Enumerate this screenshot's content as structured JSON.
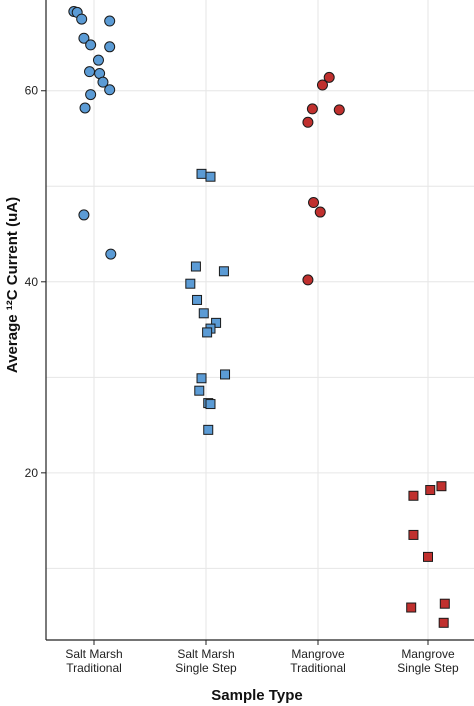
{
  "chart_data": {
    "type": "scatter",
    "title": "",
    "xlabel": "Sample Type",
    "ylabel": "Average ¹²C Current (uA)",
    "ylim": [
      2.5,
      69.5
    ],
    "yticks": [
      20,
      40,
      60
    ],
    "grid": true,
    "categories": [
      [
        "Salt Marsh",
        "Traditional"
      ],
      [
        "Salt Marsh",
        "Single Step"
      ],
      [
        "Mangrove",
        "Traditional"
      ],
      [
        "Mangrove",
        "Single Step"
      ]
    ],
    "series": [
      {
        "category_index": 0,
        "marker": "circle",
        "color": "#5b9bd5",
        "points": [
          {
            "x": -0.18,
            "y": 68.3
          },
          {
            "x": -0.15,
            "y": 68.2
          },
          {
            "x": -0.11,
            "y": 67.5
          },
          {
            "x": 0.14,
            "y": 67.3
          },
          {
            "x": -0.09,
            "y": 65.5
          },
          {
            "x": -0.03,
            "y": 64.8
          },
          {
            "x": 0.14,
            "y": 64.6
          },
          {
            "x": 0.04,
            "y": 63.2
          },
          {
            "x": -0.04,
            "y": 62.0
          },
          {
            "x": 0.05,
            "y": 61.8
          },
          {
            "x": 0.08,
            "y": 60.9
          },
          {
            "x": 0.14,
            "y": 60.1
          },
          {
            "x": -0.03,
            "y": 59.6
          },
          {
            "x": -0.08,
            "y": 58.2
          },
          {
            "x": -0.09,
            "y": 47.0
          },
          {
            "x": 0.15,
            "y": 42.9
          }
        ]
      },
      {
        "category_index": 1,
        "marker": "square",
        "color": "#5b9bd5",
        "points": [
          {
            "x": -0.04,
            "y": 51.3
          },
          {
            "x": 0.04,
            "y": 51.0
          },
          {
            "x": -0.09,
            "y": 41.6
          },
          {
            "x": 0.16,
            "y": 41.1
          },
          {
            "x": -0.14,
            "y": 39.8
          },
          {
            "x": -0.08,
            "y": 38.1
          },
          {
            "x": -0.02,
            "y": 36.7
          },
          {
            "x": 0.09,
            "y": 35.7
          },
          {
            "x": 0.04,
            "y": 35.1
          },
          {
            "x": 0.01,
            "y": 34.7
          },
          {
            "x": 0.17,
            "y": 30.3
          },
          {
            "x": -0.04,
            "y": 29.9
          },
          {
            "x": -0.06,
            "y": 28.6
          },
          {
            "x": 0.02,
            "y": 27.3
          },
          {
            "x": 0.04,
            "y": 27.2
          },
          {
            "x": 0.02,
            "y": 24.5
          }
        ]
      },
      {
        "category_index": 2,
        "marker": "circle",
        "color": "#c0302e",
        "points": [
          {
            "x": 0.1,
            "y": 61.4
          },
          {
            "x": 0.04,
            "y": 60.6
          },
          {
            "x": -0.05,
            "y": 58.1
          },
          {
            "x": 0.19,
            "y": 58.0
          },
          {
            "x": -0.09,
            "y": 56.7
          },
          {
            "x": -0.04,
            "y": 48.3
          },
          {
            "x": 0.02,
            "y": 47.3
          },
          {
            "x": -0.09,
            "y": 40.2
          }
        ]
      },
      {
        "category_index": 3,
        "marker": "square",
        "color": "#c0302e",
        "points": [
          {
            "x": 0.12,
            "y": 18.6
          },
          {
            "x": 0.02,
            "y": 18.2
          },
          {
            "x": -0.13,
            "y": 17.6
          },
          {
            "x": -0.13,
            "y": 13.5
          },
          {
            "x": 0.0,
            "y": 11.2
          },
          {
            "x": 0.15,
            "y": 6.3
          },
          {
            "x": -0.15,
            "y": 5.9
          },
          {
            "x": 0.14,
            "y": 4.3
          }
        ]
      }
    ]
  }
}
